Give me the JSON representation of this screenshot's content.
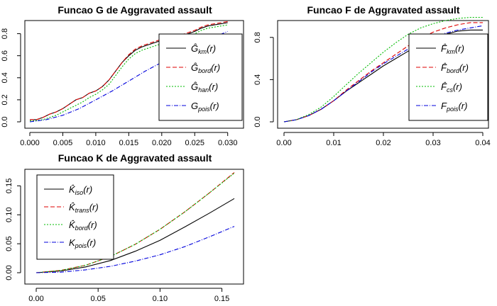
{
  "chart_data": [
    {
      "id": "g",
      "type": "line",
      "title": "Funcao G de Aggravated assault",
      "xlabel": "",
      "ylabel": "",
      "xlim": [
        0,
        0.031
      ],
      "ylim": [
        0,
        0.9
      ],
      "xticks": [
        "0.000",
        "0.005",
        "0.010",
        "0.015",
        "0.020",
        "0.025",
        "0.030"
      ],
      "yticks": [
        "0.0",
        "0.2",
        "0.4",
        "0.6",
        "0.8"
      ],
      "legend_position": "right",
      "series": [
        {
          "name": "Ĝkm(r)",
          "base": "Ĝ",
          "sub": "km",
          "color": "#000000",
          "dash": "",
          "x": [
            0,
            0.001,
            0.002,
            0.003,
            0.004,
            0.005,
            0.006,
            0.007,
            0.008,
            0.009,
            0.01,
            0.011,
            0.012,
            0.013,
            0.014,
            0.015,
            0.016,
            0.017,
            0.018,
            0.019,
            0.02,
            0.021,
            0.022,
            0.023,
            0.024,
            0.025,
            0.026,
            0.027,
            0.028,
            0.029,
            0.03
          ],
          "y": [
            0.02,
            0.02,
            0.04,
            0.07,
            0.09,
            0.12,
            0.16,
            0.2,
            0.22,
            0.26,
            0.28,
            0.32,
            0.38,
            0.46,
            0.54,
            0.6,
            0.65,
            0.68,
            0.7,
            0.72,
            0.74,
            0.76,
            0.77,
            0.78,
            0.8,
            0.82,
            0.85,
            0.87,
            0.88,
            0.89,
            0.9
          ]
        },
        {
          "name": "Ĝbord(r)",
          "base": "Ĝ",
          "sub": "bord",
          "color": "#df0000",
          "dash": "6,3",
          "x": [
            0,
            0.001,
            0.002,
            0.003,
            0.004,
            0.005,
            0.006,
            0.007,
            0.008,
            0.009,
            0.01,
            0.011,
            0.012,
            0.013,
            0.014,
            0.015,
            0.016,
            0.017,
            0.018,
            0.019,
            0.02,
            0.021,
            0.022,
            0.023,
            0.024,
            0.025,
            0.026,
            0.027,
            0.028,
            0.029,
            0.03
          ],
          "y": [
            0.02,
            0.02,
            0.04,
            0.07,
            0.09,
            0.12,
            0.16,
            0.2,
            0.22,
            0.26,
            0.28,
            0.32,
            0.38,
            0.46,
            0.54,
            0.61,
            0.66,
            0.69,
            0.71,
            0.73,
            0.75,
            0.77,
            0.78,
            0.79,
            0.81,
            0.83,
            0.86,
            0.88,
            0.89,
            0.9,
            0.91
          ]
        },
        {
          "name": "Ĝhan(r)",
          "base": "Ĝ",
          "sub": "han",
          "color": "#00bb00",
          "dash": "2,2",
          "x": [
            0,
            0.001,
            0.002,
            0.003,
            0.004,
            0.005,
            0.006,
            0.007,
            0.008,
            0.009,
            0.01,
            0.011,
            0.012,
            0.013,
            0.014,
            0.015,
            0.016,
            0.017,
            0.018,
            0.019,
            0.02,
            0.021,
            0.022,
            0.023,
            0.024,
            0.025,
            0.026,
            0.027,
            0.028,
            0.029,
            0.03
          ],
          "y": [
            0.01,
            0.01,
            0.02,
            0.04,
            0.06,
            0.09,
            0.12,
            0.15,
            0.18,
            0.22,
            0.25,
            0.29,
            0.34,
            0.42,
            0.5,
            0.57,
            0.62,
            0.65,
            0.67,
            0.69,
            0.71,
            0.73,
            0.75,
            0.76,
            0.78,
            0.8,
            0.83,
            0.85,
            0.86,
            0.87,
            0.88
          ]
        },
        {
          "name": "Gpois(r)",
          "base": "G",
          "sub": "pois",
          "color": "#0000dd",
          "dash": "6,2,1,2",
          "x": [
            0,
            0.0025,
            0.005,
            0.0075,
            0.01,
            0.0125,
            0.015,
            0.0175,
            0.02,
            0.0225,
            0.025,
            0.0275,
            0.03
          ],
          "y": [
            0.0,
            0.02,
            0.06,
            0.12,
            0.2,
            0.28,
            0.37,
            0.46,
            0.54,
            0.62,
            0.69,
            0.76,
            0.82
          ]
        }
      ]
    },
    {
      "id": "f",
      "type": "line",
      "title": "Funcao F de Aggravated assault",
      "xlabel": "",
      "ylabel": "",
      "xlim": [
        0,
        0.04
      ],
      "ylim": [
        0,
        1.0
      ],
      "xticks": [
        "0.00",
        "0.01",
        "0.02",
        "0.03",
        "0.04"
      ],
      "yticks": [
        "0.0",
        "0.4",
        "0.8"
      ],
      "legend_position": "right",
      "series": [
        {
          "name": "F̂km(r)",
          "base": "F̂",
          "sub": "km",
          "color": "#000000",
          "dash": "",
          "x": [
            0,
            0.0025,
            0.005,
            0.0075,
            0.01,
            0.0125,
            0.015,
            0.0175,
            0.02,
            0.0225,
            0.025,
            0.0275,
            0.03,
            0.0325,
            0.035,
            0.0375,
            0.04
          ],
          "y": [
            0.0,
            0.02,
            0.06,
            0.12,
            0.2,
            0.29,
            0.37,
            0.45,
            0.53,
            0.6,
            0.67,
            0.73,
            0.79,
            0.83,
            0.86,
            0.87,
            0.87
          ]
        },
        {
          "name": "F̂bord(r)",
          "base": "F̂",
          "sub": "bord",
          "color": "#df0000",
          "dash": "6,3",
          "x": [
            0,
            0.0025,
            0.005,
            0.0075,
            0.01,
            0.0125,
            0.015,
            0.0175,
            0.02,
            0.0225,
            0.025,
            0.0275,
            0.03,
            0.0325,
            0.035,
            0.0375,
            0.04
          ],
          "y": [
            0.0,
            0.02,
            0.06,
            0.12,
            0.2,
            0.3,
            0.39,
            0.48,
            0.56,
            0.64,
            0.72,
            0.79,
            0.85,
            0.89,
            0.92,
            0.94,
            0.94
          ]
        },
        {
          "name": "F̂cs(r)",
          "base": "F̂",
          "sub": "cs",
          "color": "#00bb00",
          "dash": "2,2",
          "x": [
            0,
            0.0025,
            0.005,
            0.0075,
            0.01,
            0.0125,
            0.015,
            0.0175,
            0.02,
            0.0225,
            0.025,
            0.0275,
            0.03,
            0.0325,
            0.035,
            0.0375,
            0.04
          ],
          "y": [
            0.0,
            0.02,
            0.07,
            0.14,
            0.24,
            0.35,
            0.46,
            0.56,
            0.66,
            0.75,
            0.83,
            0.89,
            0.93,
            0.96,
            0.98,
            0.99,
            0.99
          ]
        },
        {
          "name": "Fpois(r)",
          "base": "F",
          "sub": "pois",
          "color": "#0000dd",
          "dash": "6,2,1,2",
          "x": [
            0,
            0.0025,
            0.005,
            0.0075,
            0.01,
            0.0125,
            0.015,
            0.0175,
            0.02,
            0.0225,
            0.025,
            0.0275,
            0.03,
            0.0325,
            0.035,
            0.0375,
            0.04
          ],
          "y": [
            0.0,
            0.02,
            0.06,
            0.12,
            0.2,
            0.29,
            0.38,
            0.47,
            0.55,
            0.62,
            0.69,
            0.75,
            0.8,
            0.84,
            0.87,
            0.89,
            0.91
          ]
        }
      ]
    },
    {
      "id": "k",
      "type": "line",
      "title": "Funcao K de Aggravated assault",
      "xlabel": "",
      "ylabel": "",
      "xlim": [
        0,
        0.16
      ],
      "ylim": [
        0,
        0.17
      ],
      "xticks": [
        "0.00",
        "0.05",
        "0.10",
        "0.15"
      ],
      "yticks": [
        "0.00",
        "0.05",
        "0.10",
        "0.15"
      ],
      "legend_position": "top-left",
      "series": [
        {
          "name": "K̂iso(r)",
          "base": "K̂",
          "sub": "iso",
          "color": "#000000",
          "dash": "",
          "x": [
            0,
            0.02,
            0.04,
            0.06,
            0.08,
            0.1,
            0.12,
            0.14,
            0.16
          ],
          "y": [
            0.0,
            0.003,
            0.01,
            0.021,
            0.037,
            0.056,
            0.079,
            0.103,
            0.128
          ]
        },
        {
          "name": "K̂trans(r)",
          "base": "K̂",
          "sub": "trans",
          "color": "#df0000",
          "dash": "6,3",
          "x": [
            0,
            0.02,
            0.04,
            0.06,
            0.08,
            0.1,
            0.12,
            0.14,
            0.16
          ],
          "y": [
            0.0,
            0.004,
            0.013,
            0.028,
            0.049,
            0.075,
            0.105,
            0.138,
            0.173
          ]
        },
        {
          "name": "K̂bord(r)",
          "base": "K̂",
          "sub": "bord",
          "color": "#00bb00",
          "dash": "2,2",
          "x": [
            0,
            0.02,
            0.04,
            0.06,
            0.08,
            0.1,
            0.12,
            0.14,
            0.16
          ],
          "y": [
            0.0,
            0.004,
            0.013,
            0.028,
            0.049,
            0.075,
            0.105,
            0.138,
            0.172
          ]
        },
        {
          "name": "Kpois(r)",
          "base": "K",
          "sub": "pois",
          "color": "#0000dd",
          "dash": "6,2,1,2",
          "x": [
            0,
            0.02,
            0.04,
            0.06,
            0.08,
            0.1,
            0.12,
            0.14,
            0.16
          ],
          "y": [
            0.0,
            0.001,
            0.005,
            0.011,
            0.02,
            0.031,
            0.045,
            0.062,
            0.08
          ]
        }
      ]
    }
  ]
}
